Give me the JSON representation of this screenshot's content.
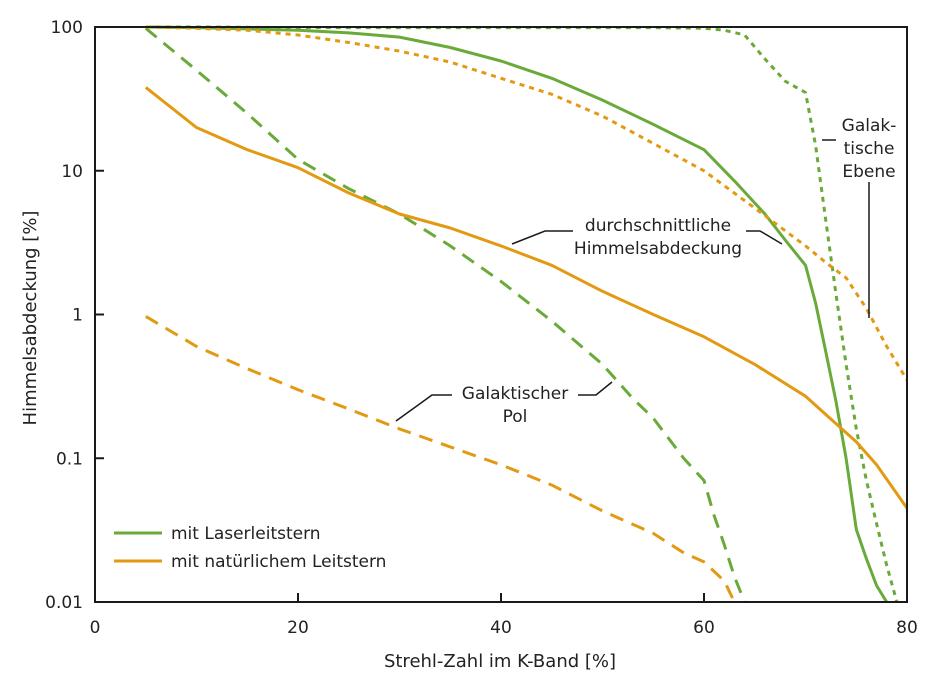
{
  "chart_data": {
    "type": "line",
    "xlabel": "Strehl-Zahl im K-Band  [%]",
    "ylabel": "Himmelsabdeckung  [%]",
    "xlim": [
      0,
      80
    ],
    "ylim": [
      0.01,
      100
    ],
    "yscale": "log",
    "grid": false,
    "legend_position": "bottom-left",
    "x_ticks": [
      0,
      20,
      40,
      60,
      80
    ],
    "x_tick_labels": [
      "0",
      "20",
      "40",
      "60",
      "80"
    ],
    "y_ticks": [
      0.01,
      0.1,
      1,
      10,
      100
    ],
    "y_tick_labels": [
      "0.01",
      "0.1",
      "1",
      "10",
      "100"
    ],
    "legend": [
      {
        "label": "mit Laserleitstern",
        "color": "#6aaa3a"
      },
      {
        "label": "mit natürlichem Leitstern",
        "color": "#e29a13"
      }
    ],
    "annotations": [
      {
        "lines": [
          "Galak-",
          "tische",
          "Ebene"
        ]
      },
      {
        "lines": [
          "durchschnittliche",
          "Himmelsabdeckung"
        ]
      },
      {
        "lines": [
          "Galaktischer",
          "Pol"
        ]
      }
    ],
    "series": [
      {
        "guide_star": "Laserleitstern",
        "region": "Galaktische Ebene",
        "style": "dotted",
        "color": "#6aaa3a",
        "x": [
          5,
          10,
          20,
          30,
          40,
          50,
          55,
          60,
          62,
          64,
          66,
          68,
          70,
          71,
          72,
          73,
          74,
          75,
          76,
          77,
          78,
          79
        ],
        "y": [
          100,
          100,
          99,
          99,
          99,
          99,
          99,
          98,
          95,
          88,
          60,
          42,
          35,
          15,
          4.5,
          1.4,
          0.45,
          0.16,
          0.07,
          0.035,
          0.018,
          0.01
        ]
      },
      {
        "guide_star": "Laserleitstern",
        "region": "durchschnittliche Himmelsabdeckung",
        "style": "solid",
        "color": "#6aaa3a",
        "x": [
          5,
          10,
          15,
          20,
          25,
          30,
          35,
          40,
          45,
          50,
          55,
          60,
          63,
          66,
          68,
          70,
          71,
          72,
          73,
          74,
          75,
          76,
          77,
          78,
          79
        ],
        "y": [
          100,
          99,
          97,
          95,
          91,
          85,
          72,
          58,
          44,
          31,
          21,
          14,
          8.5,
          5,
          3.3,
          2.2,
          1.2,
          0.55,
          0.25,
          0.1,
          0.032,
          0.02,
          0.013,
          0.01,
          0.007
        ]
      },
      {
        "guide_star": "Laserleitstern",
        "region": "Galaktischer Pol",
        "style": "dashed",
        "color": "#6aaa3a",
        "x": [
          5,
          10,
          15,
          20,
          25,
          30,
          35,
          40,
          45,
          50,
          53,
          55,
          58,
          60,
          61,
          62,
          63,
          64
        ],
        "y": [
          98,
          50,
          25,
          12,
          7.5,
          5,
          3,
          1.7,
          0.9,
          0.45,
          0.26,
          0.19,
          0.1,
          0.07,
          0.04,
          0.025,
          0.015,
          0.01
        ]
      },
      {
        "guide_star": "natürlicher Leitstern",
        "region": "Galaktische Ebene",
        "style": "dotted",
        "color": "#e29a13",
        "x": [
          5,
          10,
          15,
          20,
          25,
          30,
          35,
          40,
          45,
          50,
          55,
          60,
          65,
          70,
          72,
          74,
          76,
          78,
          80
        ],
        "y": [
          100,
          98,
          95,
          88,
          78,
          68,
          57,
          44,
          34,
          24,
          15.5,
          10,
          5.5,
          3,
          2.3,
          1.8,
          1.1,
          0.6,
          0.35
        ]
      },
      {
        "guide_star": "natürlicher Leitstern",
        "region": "durchschnittliche Himmelsabdeckung",
        "style": "solid",
        "color": "#e29a13",
        "x": [
          5,
          10,
          15,
          20,
          25,
          30,
          35,
          40,
          45,
          50,
          55,
          60,
          65,
          70,
          75,
          77,
          80
        ],
        "y": [
          38,
          20,
          14,
          10.5,
          7,
          5,
          4,
          3,
          2.2,
          1.45,
          1,
          0.7,
          0.45,
          0.27,
          0.13,
          0.09,
          0.045
        ]
      },
      {
        "guide_star": "natürlicher Leitstern",
        "region": "Galaktischer Pol",
        "style": "dashed",
        "color": "#e29a13",
        "x": [
          5,
          10,
          15,
          20,
          25,
          30,
          35,
          40,
          45,
          50,
          55,
          58,
          60,
          62,
          63
        ],
        "y": [
          0.97,
          0.6,
          0.42,
          0.3,
          0.22,
          0.16,
          0.12,
          0.09,
          0.065,
          0.043,
          0.03,
          0.022,
          0.019,
          0.014,
          0.01
        ]
      }
    ]
  }
}
